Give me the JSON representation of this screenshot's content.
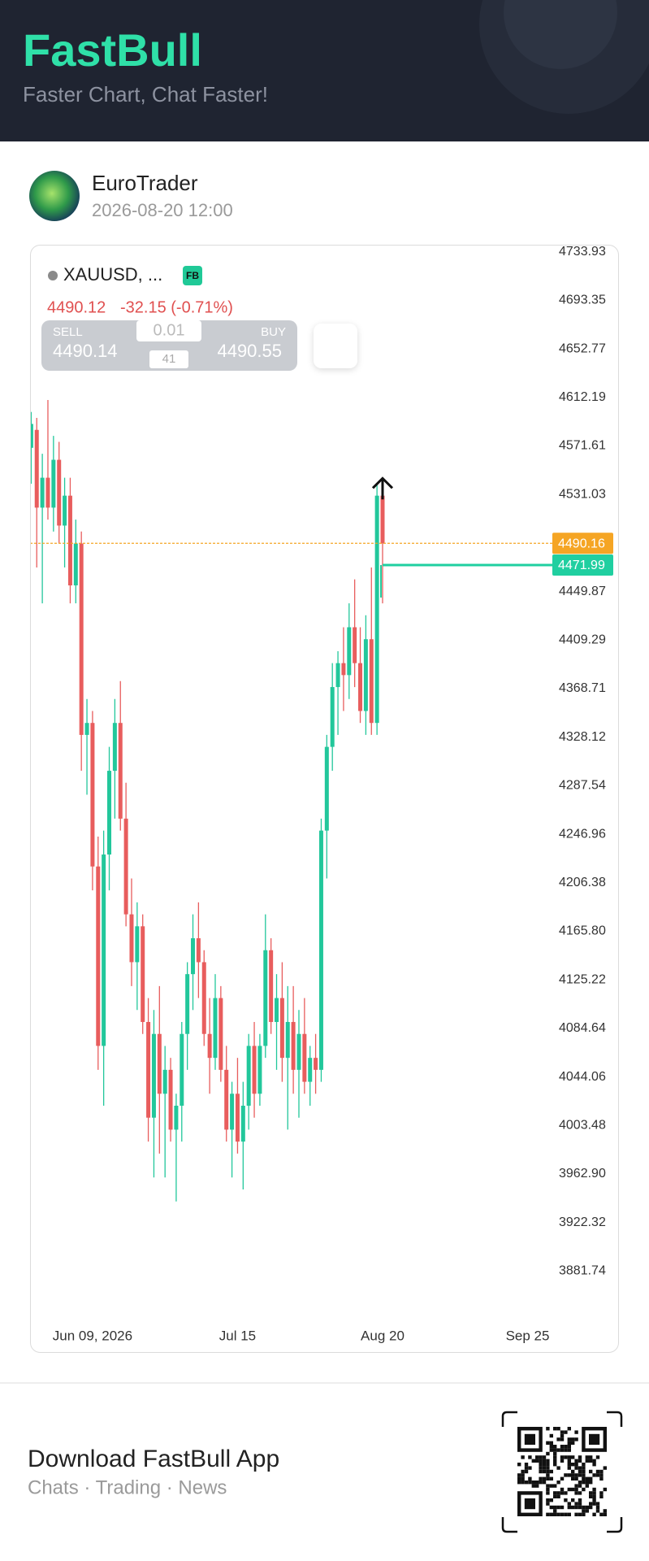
{
  "header": {
    "logo": "FastBull",
    "tagline": "Faster Chart, Chat Faster!"
  },
  "post": {
    "author": "EuroTrader",
    "timestamp": "2026-08-20 12:00"
  },
  "quote": {
    "symbol": "XAUUSD, ...",
    "badge": "FB",
    "last": "4490.12",
    "change": "-32.15 (-0.71%)",
    "sell_label": "SELL",
    "sell": "4490.14",
    "lot": "0.01",
    "spread": "41",
    "buy_label": "BUY",
    "buy": "4490.55"
  },
  "chart_data": {
    "type": "candlestick",
    "open": [
      4570,
      4585,
      4520,
      4545,
      4520,
      4560,
      4505,
      4530,
      4455,
      4490,
      4330,
      4340,
      4220,
      4070,
      4230,
      4300,
      4340,
      4260,
      4180,
      4140,
      4170,
      4090,
      4010,
      4080,
      4030,
      4050,
      4000,
      4020,
      4080,
      4130,
      4160,
      4140,
      4080,
      4060,
      4110,
      4050,
      4000,
      4030,
      3990,
      4020,
      4070,
      4030,
      4070,
      4150,
      4090,
      4110,
      4060,
      4090,
      4050,
      4080,
      4040,
      4060,
      4050,
      4250,
      4320,
      4370,
      4390,
      4380,
      4420,
      4390,
      4350,
      4410,
      4340,
      4530
    ],
    "high": [
      4600,
      4595,
      4565,
      4610,
      4580,
      4575,
      4545,
      4545,
      4510,
      4500,
      4360,
      4350,
      4245,
      4250,
      4320,
      4360,
      4375,
      4290,
      4210,
      4190,
      4180,
      4110,
      4100,
      4120,
      4070,
      4060,
      4030,
      4090,
      4140,
      4180,
      4190,
      4150,
      4110,
      4130,
      4120,
      4070,
      4040,
      4060,
      4040,
      4080,
      4090,
      4080,
      4180,
      4160,
      4130,
      4140,
      4120,
      4120,
      4100,
      4110,
      4070,
      4080,
      4260,
      4330,
      4390,
      4400,
      4420,
      4440,
      4460,
      4420,
      4430,
      4470,
      4540,
      4535
    ],
    "low": [
      4540,
      4470,
      4440,
      4510,
      4500,
      4490,
      4470,
      4440,
      4440,
      4300,
      4280,
      4200,
      4050,
      4020,
      4200,
      4260,
      4250,
      4170,
      4120,
      4100,
      4080,
      3990,
      3960,
      3980,
      3960,
      3990,
      3940,
      3990,
      4050,
      4100,
      4110,
      4070,
      4030,
      4050,
      4040,
      3990,
      3960,
      3980,
      3950,
      4000,
      4010,
      4020,
      4060,
      4080,
      4050,
      4040,
      4000,
      4030,
      4010,
      4030,
      4020,
      4030,
      4040,
      4210,
      4300,
      4330,
      4350,
      4360,
      4370,
      4340,
      4330,
      4330,
      4330,
      4440
    ],
    "close": [
      4590,
      4520,
      4545,
      4520,
      4560,
      4505,
      4530,
      4455,
      4490,
      4330,
      4340,
      4220,
      4070,
      4230,
      4300,
      4340,
      4260,
      4180,
      4140,
      4170,
      4090,
      4010,
      4080,
      4030,
      4050,
      4000,
      4020,
      4080,
      4130,
      4160,
      4140,
      4080,
      4060,
      4110,
      4050,
      4000,
      4030,
      3990,
      4020,
      4070,
      4030,
      4070,
      4150,
      4090,
      4110,
      4060,
      4090,
      4050,
      4080,
      4040,
      4060,
      4050,
      4250,
      4320,
      4370,
      4390,
      4380,
      4420,
      4390,
      4350,
      4410,
      4340,
      4530,
      4490.16
    ],
    "colors": {
      "up": "#22c79b",
      "down": "#e85d5d"
    },
    "xlim": [
      -0.2,
      93
    ],
    "xticks": [
      {
        "value": 11,
        "label": "Jun 09, 2026"
      },
      {
        "value": 37,
        "label": "Jul 15"
      },
      {
        "value": 63,
        "label": "Aug 20"
      },
      {
        "value": 89,
        "label": "Sep 25"
      }
    ],
    "ylim": [
      3842.6,
      4739.8
    ],
    "yticks": [
      4733.93,
      4693.35,
      4652.77,
      4612.19,
      4571.61,
      4531.03,
      4449.87,
      4409.29,
      4368.71,
      4328.12,
      4287.54,
      4246.96,
      4206.38,
      {
        "value": 4165.8,
        "label": "4165.80"
      },
      4125.22,
      4084.64,
      4044.06,
      4003.48,
      {
        "value": 3962.9,
        "label": "3962.90"
      },
      3922.32,
      3881.74
    ],
    "price_lines": [
      {
        "value": 4490.16,
        "color": "#f5a524"
      },
      {
        "value": 4471.99,
        "color": "#20cfa0"
      }
    ]
  },
  "footer": {
    "title": "Download FastBull App",
    "subtitle": "Chats · Trading · News"
  }
}
